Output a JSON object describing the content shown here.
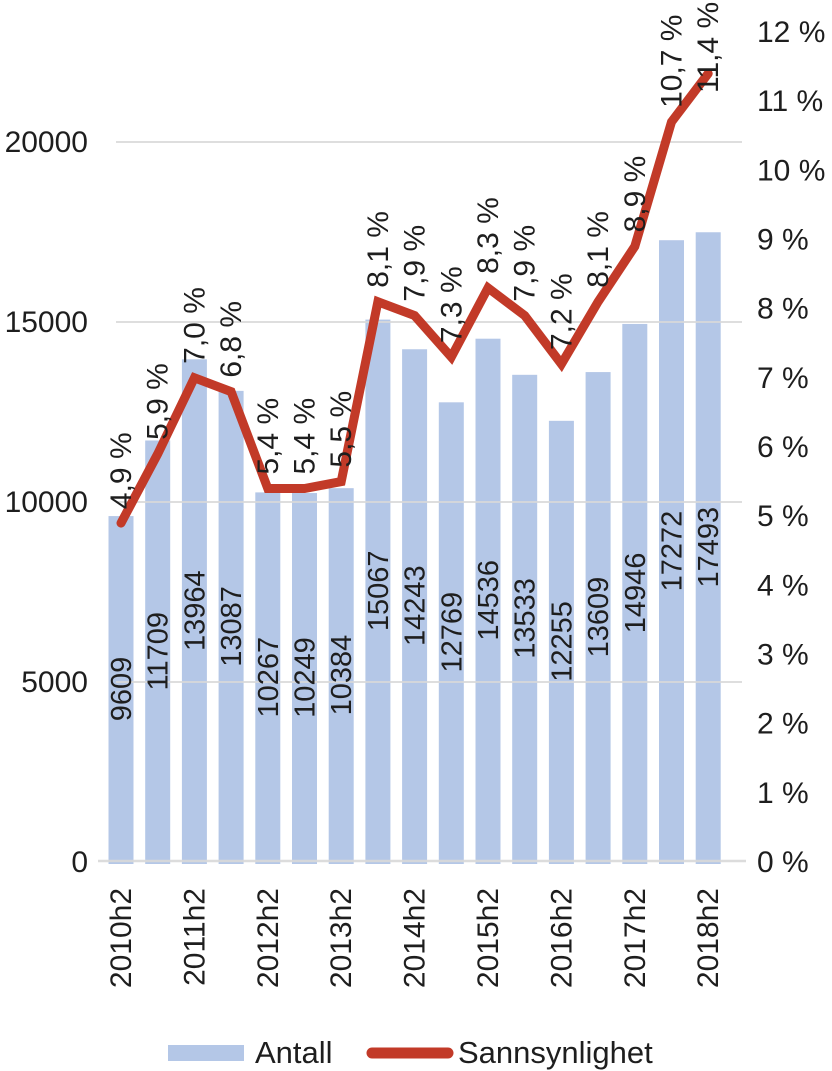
{
  "chart_data": {
    "type": "combo_bar_line",
    "title": "",
    "n_bars": 17,
    "x_tick_labels": [
      "2010h2",
      "2011h2",
      "2012h2",
      "2013h2",
      "2014h2",
      "2015h2",
      "2016h2",
      "2017h2",
      "2018h2"
    ],
    "x_tick_bar_indices": [
      0,
      2,
      4,
      6,
      8,
      10,
      12,
      14,
      16
    ],
    "series": [
      {
        "name": "Antall",
        "type": "bar",
        "color": "#b4c7e7",
        "values": [
          9609,
          11709,
          13964,
          13087,
          10267,
          10249,
          10384,
          15067,
          14243,
          12769,
          14536,
          13533,
          12255,
          13609,
          14946,
          17272,
          17493
        ],
        "value_labels": [
          "9609",
          "11709",
          "13964",
          "13087",
          "10267",
          "10249",
          "10384",
          "15067",
          "14243",
          "12769",
          "14536",
          "13533",
          "12255",
          "13609",
          "14946",
          "17272",
          "17493"
        ]
      },
      {
        "name": "Sannsynlighet",
        "type": "line",
        "color": "#c23a28",
        "values_percent": [
          4.9,
          5.9,
          7.0,
          6.8,
          5.4,
          5.4,
          5.5,
          8.1,
          7.9,
          7.3,
          8.3,
          7.9,
          7.2,
          8.1,
          8.9,
          10.7,
          11.4
        ],
        "value_labels": [
          "4,9 %",
          "5,9 %",
          "7,0 %",
          "6,8 %",
          "5,4 %",
          "5,4 %",
          "5,5 %",
          "8,1 %",
          "7,9 %",
          "7,3 %",
          "8,3 %",
          "7,9 %",
          "7,2 %",
          "8,1 %",
          "8,9 %",
          "10,7 %",
          "11,4 %"
        ]
      }
    ],
    "left_axis": {
      "tick_labels": [
        "0",
        "5000",
        "10000",
        "15000",
        "20000"
      ],
      "tick_values": [
        0,
        5000,
        10000,
        15000,
        20000
      ],
      "max": 20000
    },
    "right_axis": {
      "tick_labels": [
        "0 %",
        "1 %",
        "2 %",
        "3 %",
        "4 %",
        "5 %",
        "6 %",
        "7 %",
        "8 %",
        "9 %",
        "10 %",
        "11 %",
        "12 %"
      ],
      "tick_values": [
        0,
        1,
        2,
        3,
        4,
        5,
        6,
        7,
        8,
        9,
        10,
        11,
        12
      ],
      "max_percent": 12
    },
    "grid": true,
    "legend_position": "bottom",
    "colors": {
      "grid_line": "#d9d9d9",
      "text": "#1e1e1e"
    }
  }
}
